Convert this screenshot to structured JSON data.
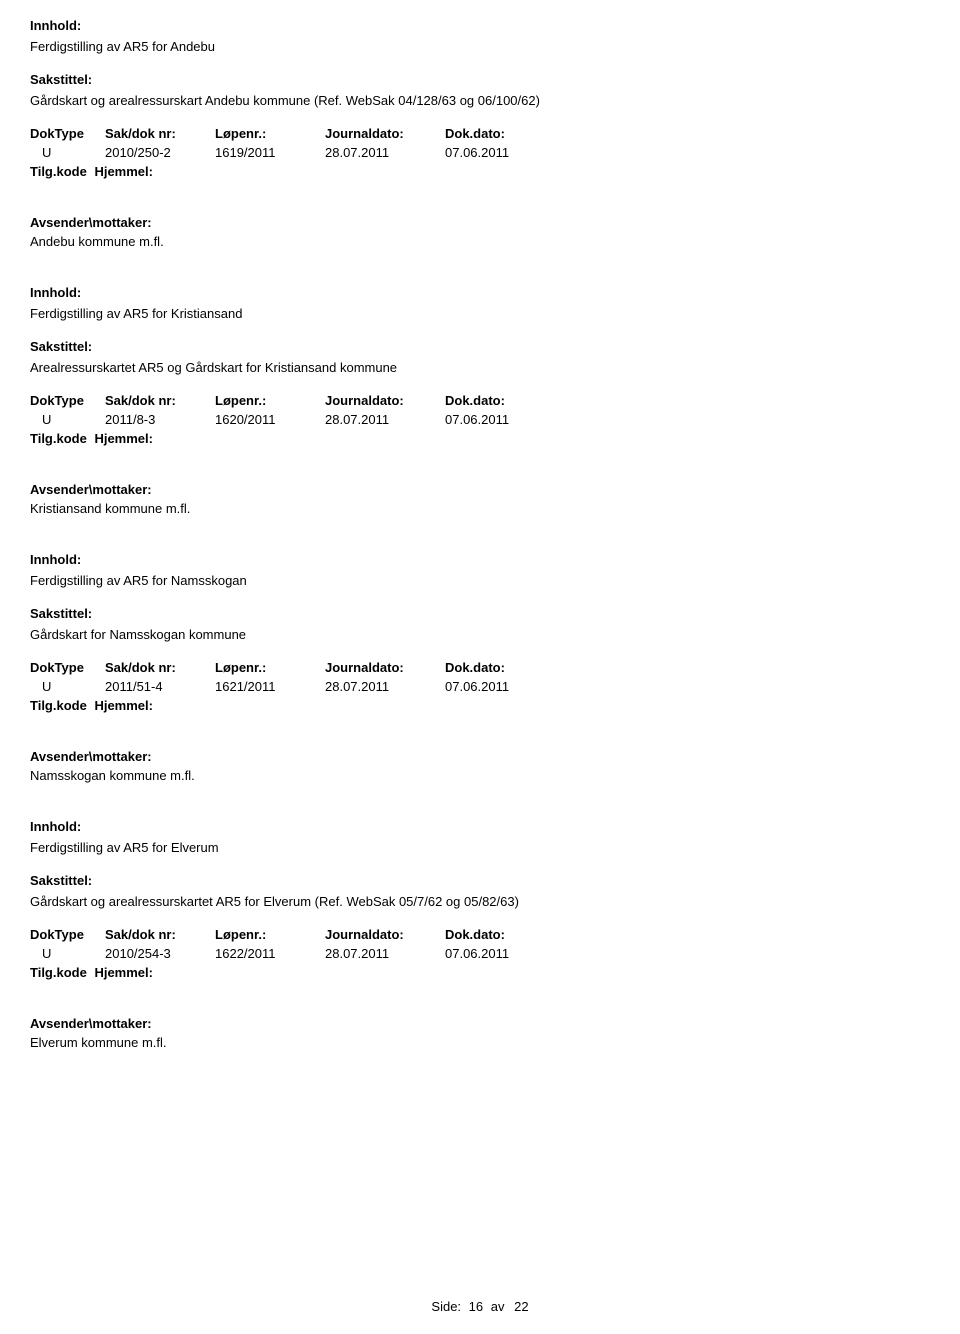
{
  "labels": {
    "innhold": "Innhold:",
    "sakstittel": "Sakstittel:",
    "doktype": "DokType",
    "saknr": "Sak/dok nr:",
    "lopenr": "Løpenr.:",
    "journaldato": "Journaldato:",
    "dokdato": "Dok.dato:",
    "tilgkode": "Tilg.kode",
    "hjemmel": "Hjemmel:",
    "avsender": "Avsender\\mottaker:"
  },
  "records": [
    {
      "innhold": "Ferdigstilling av AR5 for Andebu",
      "sakstittel": "Gårdskart og arealressurskart Andebu kommune (Ref. WebSak 04/128/63 og 06/100/62)",
      "doktype": "U",
      "saknr": "2010/250-2",
      "lopenr": "1619/2011",
      "journaldato": "28.07.2011",
      "dokdato": "07.06.2011",
      "avsender": "Andebu kommune m.fl."
    },
    {
      "innhold": "Ferdigstilling av AR5 for Kristiansand",
      "sakstittel": "Arealressurskartet AR5 og Gårdskart for Kristiansand kommune",
      "doktype": "U",
      "saknr": "2011/8-3",
      "lopenr": "1620/2011",
      "journaldato": "28.07.2011",
      "dokdato": "07.06.2011",
      "avsender": "Kristiansand kommune m.fl."
    },
    {
      "innhold": "Ferdigstilling av AR5 for Namsskogan",
      "sakstittel": "Gårdskart for Namsskogan kommune",
      "doktype": "U",
      "saknr": "2011/51-4",
      "lopenr": "1621/2011",
      "journaldato": "28.07.2011",
      "dokdato": "07.06.2011",
      "avsender": "Namsskogan kommune m.fl."
    },
    {
      "innhold": "Ferdigstilling av AR5 for Elverum",
      "sakstittel": "Gårdskart og arealressurskartet AR5 for Elverum (Ref. WebSak 05/7/62 og 05/82/63)",
      "doktype": "U",
      "saknr": "2010/254-3",
      "lopenr": "1622/2011",
      "journaldato": "28.07.2011",
      "dokdato": "07.06.2011",
      "avsender": "Elverum kommune m.fl."
    }
  ],
  "footer": {
    "side": "Side:",
    "page": "16",
    "av": "av",
    "total": "22"
  }
}
